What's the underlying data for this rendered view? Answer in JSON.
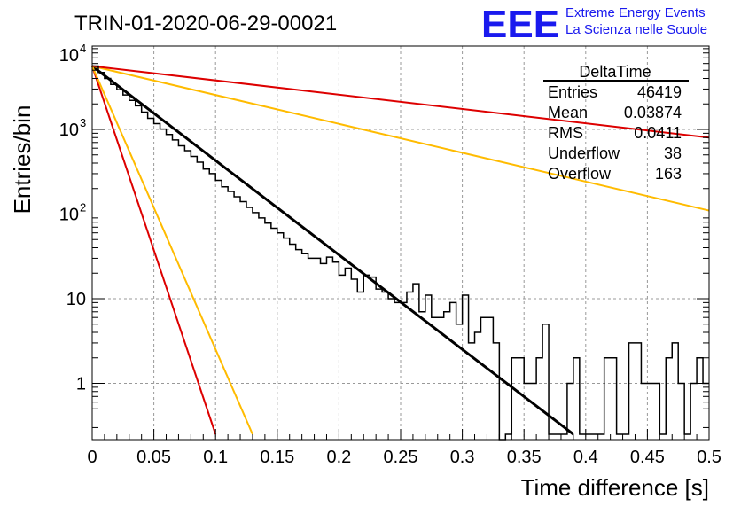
{
  "header": {
    "title": "TRIN-01-2020-06-29-00021",
    "logo_text": "EEE",
    "logo_line1": "Extreme Energy Events",
    "logo_line2": "La Scienza nelle Scuole"
  },
  "colors": {
    "logo": "#1a1aee",
    "histogram": "#000000",
    "fit": "#000000",
    "ref_red": "#dd0000",
    "ref_orange": "#ffbb00",
    "grid": "#999999"
  },
  "stats": {
    "title": "DeltaTime",
    "rows": [
      {
        "label": "Entries",
        "value": "46419"
      },
      {
        "label": "Mean",
        "value": "0.03874"
      },
      {
        "label": "RMS",
        "value": "0.0411"
      },
      {
        "label": "Underflow",
        "value": "38"
      },
      {
        "label": "Overflow",
        "value": "163"
      }
    ]
  },
  "chart_data": {
    "type": "line",
    "title": "TRIN-01-2020-06-29-00021",
    "xlabel": "Time difference [s]",
    "ylabel": "Entries/bin",
    "xlim": [
      0,
      0.5
    ],
    "ylim": [
      0.25,
      10000
    ],
    "yscale": "log",
    "grid": true,
    "legend": "top-right stats box",
    "x_ticks": [
      "0",
      "0.05",
      "0.1",
      "0.15",
      "0.2",
      "0.25",
      "0.3",
      "0.35",
      "0.4",
      "0.45",
      "0.5"
    ],
    "y_ticks": [
      {
        "value": 1,
        "label": "1"
      },
      {
        "value": 10,
        "label": "10"
      },
      {
        "value": 100,
        "label": "10",
        "exp": "2"
      },
      {
        "value": 1000,
        "label": "10",
        "exp": "3"
      },
      {
        "value": 10000,
        "label": "10",
        "exp": "4"
      }
    ],
    "histogram": {
      "bin_width": 0.005,
      "values": [
        5600,
        4700,
        4000,
        3400,
        2950,
        2550,
        2200,
        1900,
        1600,
        1350,
        1170,
        1010,
        870,
        750,
        640,
        560,
        480,
        410,
        340,
        300,
        250,
        210,
        185,
        160,
        140,
        120,
        104,
        90,
        78,
        68,
        60,
        52,
        44,
        38,
        34,
        30,
        30,
        26,
        31,
        27,
        19,
        23,
        17,
        12,
        19,
        18,
        13,
        12,
        10,
        9,
        9,
        12,
        15,
        7,
        11,
        6,
        6,
        7,
        9,
        5,
        11,
        3,
        4,
        6,
        6,
        3,
        0,
        0.25,
        2,
        2,
        1,
        1,
        2,
        5,
        0.25,
        0.25,
        0.25,
        1,
        2,
        0.25,
        0.25,
        0.25,
        0.25,
        2,
        2,
        0.25,
        0.25,
        3,
        3,
        1,
        1,
        1,
        0.25,
        2,
        3,
        1,
        0.25,
        1,
        2,
        1
      ]
    },
    "series": [
      {
        "x": [
          0,
          0.39
        ],
        "y": [
          5600,
          0.25
        ],
        "color": "#000000"
      },
      {
        "x": [
          0,
          0.1
        ],
        "y": [
          5600,
          0.25
        ],
        "color": "#dd0000"
      },
      {
        "x": [
          0,
          0.13
        ],
        "y": [
          5600,
          0.25
        ],
        "color": "#ffbb00"
      },
      {
        "x": [
          0,
          0.5
        ],
        "y": [
          5600,
          110
        ],
        "color": "#ffbb00"
      },
      {
        "x": [
          0,
          0.5
        ],
        "y": [
          5600,
          800
        ],
        "color": "#dd0000"
      }
    ]
  }
}
